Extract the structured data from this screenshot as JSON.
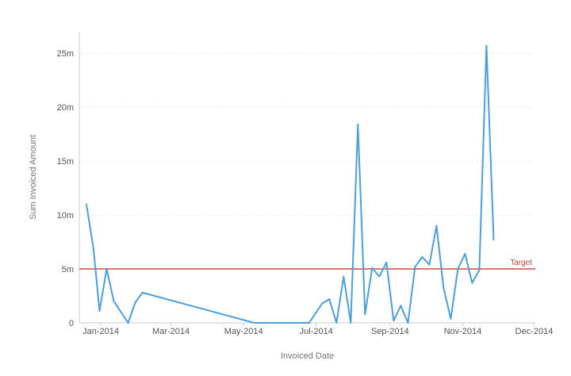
{
  "chart_data": {
    "type": "line",
    "xlabel": "Invoiced Date",
    "ylabel": "Sum Invoiced Amount",
    "x_tick_labels": [
      "Jan-2014",
      "Mar-2014",
      "May-2014",
      "Jul-2014",
      "Sep-2014",
      "Nov-2014",
      "Dec-2014"
    ],
    "x_tick_dates": [
      "2014-01-01",
      "2014-03-01",
      "2014-05-01",
      "2014-07-01",
      "2014-09-01",
      "2014-11-01",
      "2014-12-31"
    ],
    "y_tick_labels": [
      "0",
      "5m",
      "10m",
      "15m",
      "20m",
      "25m"
    ],
    "y_tick_values": [
      0,
      5000000,
      10000000,
      15000000,
      20000000,
      25000000
    ],
    "xlim": [
      "2013-12-14",
      "2015-01-01"
    ],
    "ylim": [
      0,
      27000000
    ],
    "grid": true,
    "target": {
      "label": "Target",
      "value": 5000000,
      "color": "#d64545"
    },
    "series": [
      {
        "color": "#4a9fe0",
        "points": [
          {
            "x": "2013-12-20",
            "y": 11000000
          },
          {
            "x": "2013-12-26",
            "y": 6800000
          },
          {
            "x": "2013-12-31",
            "y": 1100000
          },
          {
            "x": "2014-01-06",
            "y": 5000000
          },
          {
            "x": "2014-01-12",
            "y": 2000000
          },
          {
            "x": "2014-01-24",
            "y": 0
          },
          {
            "x": "2014-01-30",
            "y": 1900000
          },
          {
            "x": "2014-02-05",
            "y": 2800000
          },
          {
            "x": "2014-05-10",
            "y": 0
          },
          {
            "x": "2014-06-25",
            "y": 0
          },
          {
            "x": "2014-07-06",
            "y": 1800000
          },
          {
            "x": "2014-07-12",
            "y": 2200000
          },
          {
            "x": "2014-07-18",
            "y": 0
          },
          {
            "x": "2014-07-24",
            "y": 4300000
          },
          {
            "x": "2014-07-30",
            "y": 0
          },
          {
            "x": "2014-08-05",
            "y": 18400000
          },
          {
            "x": "2014-08-11",
            "y": 800000
          },
          {
            "x": "2014-08-17",
            "y": 5100000
          },
          {
            "x": "2014-08-23",
            "y": 4300000
          },
          {
            "x": "2014-08-29",
            "y": 5600000
          },
          {
            "x": "2014-09-04",
            "y": 200000
          },
          {
            "x": "2014-09-10",
            "y": 1600000
          },
          {
            "x": "2014-09-16",
            "y": 0
          },
          {
            "x": "2014-09-22",
            "y": 5200000
          },
          {
            "x": "2014-09-28",
            "y": 6100000
          },
          {
            "x": "2014-10-04",
            "y": 5400000
          },
          {
            "x": "2014-10-10",
            "y": 9000000
          },
          {
            "x": "2014-10-16",
            "y": 3200000
          },
          {
            "x": "2014-10-22",
            "y": 400000
          },
          {
            "x": "2014-10-28",
            "y": 5000000
          },
          {
            "x": "2014-11-03",
            "y": 6400000
          },
          {
            "x": "2014-11-09",
            "y": 3700000
          },
          {
            "x": "2014-11-15",
            "y": 4900000
          },
          {
            "x": "2014-11-21",
            "y": 25700000
          },
          {
            "x": "2014-11-27",
            "y": 7700000
          }
        ]
      }
    ]
  }
}
